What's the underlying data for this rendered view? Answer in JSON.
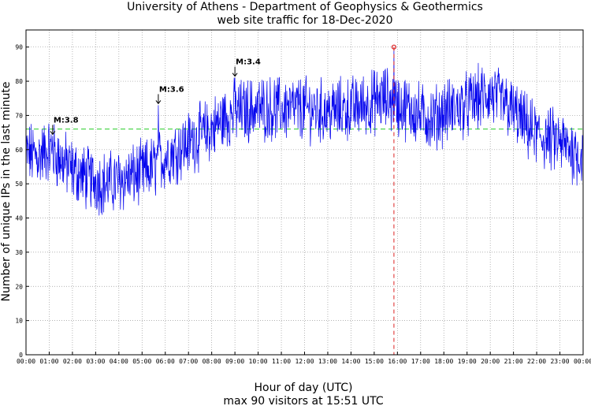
{
  "chart_data": {
    "type": "line",
    "title": "University of Athens - Department of Geophysics & Geothermics",
    "subtitle": "web site traffic for 18-Dec-2020",
    "xlabel": "Hour of day (UTC)",
    "footer": "max 90 visitors at 15:51 UTC",
    "ylabel": "Number of unique IPs in the last minute",
    "xlim": [
      0,
      24
    ],
    "ylim": [
      0,
      95
    ],
    "x_ticks": [
      "00:00",
      "01:00",
      "02:00",
      "03:00",
      "04:00",
      "05:00",
      "06:00",
      "07:00",
      "08:00",
      "09:00",
      "10:00",
      "11:00",
      "12:00",
      "13:00",
      "14:00",
      "15:00",
      "16:00",
      "17:00",
      "18:00",
      "19:00",
      "20:00",
      "21:00",
      "22:00",
      "23:00",
      "00:00"
    ],
    "y_ticks": [
      0,
      10,
      20,
      30,
      40,
      50,
      60,
      70,
      80,
      90
    ],
    "grid": true,
    "reference_line": {
      "value": 66,
      "color": "#22cc22",
      "style": "dashed"
    },
    "max_marker": {
      "hour": 15.85,
      "value": 90,
      "color": "#dd2222"
    },
    "series_color": "#0000ee",
    "trend_points": [
      [
        0,
        59
      ],
      [
        0.5,
        58
      ],
      [
        1,
        60
      ],
      [
        1.5,
        57
      ],
      [
        2,
        54
      ],
      [
        2.5,
        52
      ],
      [
        3,
        51
      ],
      [
        3.5,
        50
      ],
      [
        4,
        51
      ],
      [
        4.5,
        52
      ],
      [
        5,
        53
      ],
      [
        5.5,
        55
      ],
      [
        6,
        58
      ],
      [
        6.5,
        60
      ],
      [
        7,
        62
      ],
      [
        7.5,
        64
      ],
      [
        8,
        66
      ],
      [
        8.5,
        69
      ],
      [
        9,
        71
      ],
      [
        10,
        72
      ],
      [
        11,
        72
      ],
      [
        12,
        72
      ],
      [
        13,
        71
      ],
      [
        14,
        72
      ],
      [
        15,
        74
      ],
      [
        15.5,
        75
      ],
      [
        16,
        73
      ],
      [
        16.5,
        72
      ],
      [
        17,
        70
      ],
      [
        17.5,
        69
      ],
      [
        18,
        71
      ],
      [
        18.5,
        72
      ],
      [
        19,
        73
      ],
      [
        19.5,
        75
      ],
      [
        20,
        76
      ],
      [
        20.5,
        74
      ],
      [
        21,
        71
      ],
      [
        21.5,
        67
      ],
      [
        22,
        64
      ],
      [
        22.5,
        63
      ],
      [
        23,
        62
      ],
      [
        23.5,
        60
      ],
      [
        24,
        58
      ]
    ],
    "annotations": [
      {
        "label": "M:3.8",
        "hour": 1.15,
        "value": 64
      },
      {
        "label": "M:3.6",
        "hour": 5.7,
        "value": 73
      },
      {
        "label": "M:3.4",
        "hour": 9.0,
        "value": 81
      }
    ]
  }
}
